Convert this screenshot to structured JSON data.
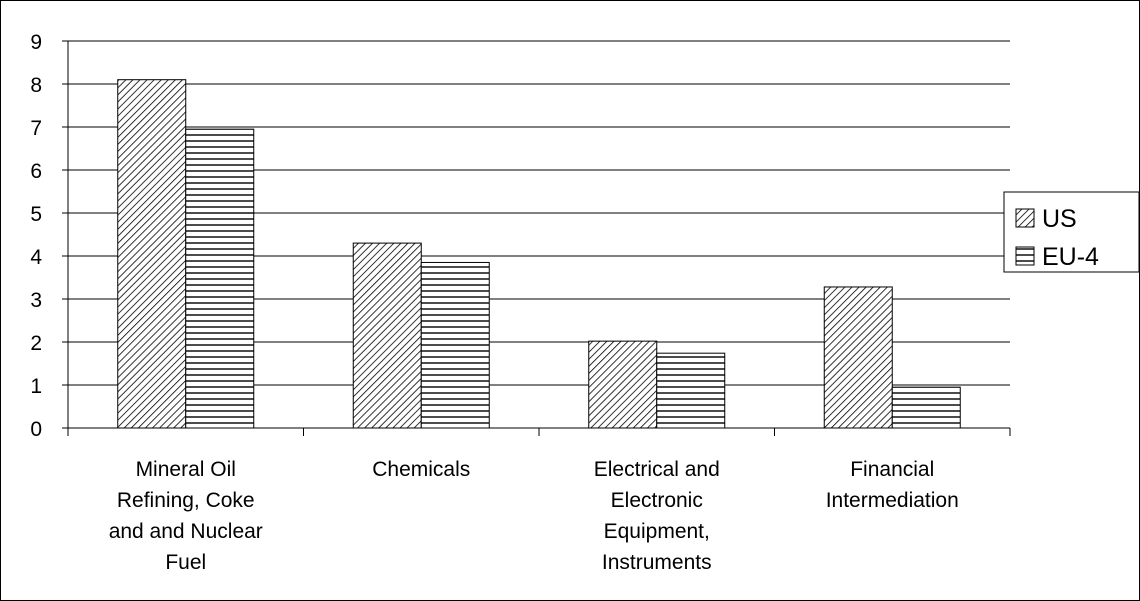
{
  "chart_data": {
    "type": "bar",
    "categories": [
      "Mineral Oil\nRefining, Coke\nand and Nuclear\nFuel",
      "Chemicals",
      "Electrical and\nElectronic\nEquipment,\nInstruments",
      "Financial\nIntermediation"
    ],
    "series": [
      {
        "name": "US",
        "color": "#000000",
        "pattern": "diagonal",
        "values": [
          8.1,
          4.3,
          2.02,
          3.28
        ]
      },
      {
        "name": "EU-4",
        "color": "#000000",
        "pattern": "horizontal",
        "values": [
          6.95,
          3.85,
          1.74,
          0.95
        ]
      }
    ],
    "ylim": [
      0,
      9
    ],
    "yticks": [
      0,
      1,
      2,
      3,
      4,
      5,
      6,
      7,
      8,
      9
    ],
    "grid": true,
    "legend": "right"
  }
}
